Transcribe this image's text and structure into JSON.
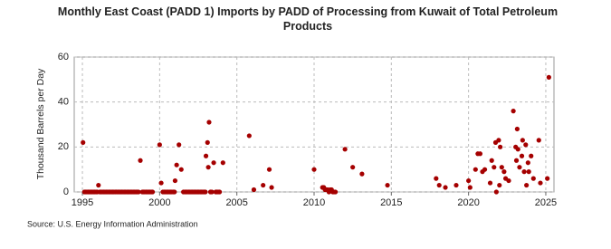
{
  "chart_data": {
    "type": "scatter",
    "title": "Monthly East Coast (PADD 1) Imports by PADD of Processing from Kuwait of Total Petroleum Products",
    "y_label": "Thousand Barrels per Day",
    "source": "Source: U.S. Energy Information Administration",
    "color": "#a50000",
    "grid": true,
    "xlim": [
      1994.47,
      2025.53
    ],
    "xticks": [
      1995,
      2000,
      2005,
      2010,
      2015,
      2020,
      2025
    ],
    "ylim": [
      0,
      60
    ],
    "yticks": [
      0,
      20,
      40,
      60
    ],
    "x": [
      1995.04,
      1995.13,
      1995.21,
      1995.29,
      1995.38,
      1995.46,
      1995.54,
      1995.63,
      1995.71,
      1995.79,
      1995.88,
      1995.96,
      1996.04,
      1996.13,
      1996.21,
      1996.29,
      1996.38,
      1996.46,
      1996.54,
      1996.63,
      1996.71,
      1996.79,
      1996.88,
      1996.96,
      1997.04,
      1997.13,
      1997.21,
      1997.29,
      1997.38,
      1997.46,
      1997.54,
      1997.63,
      1997.71,
      1997.79,
      1997.88,
      1997.96,
      1998.04,
      1998.13,
      1998.21,
      1998.29,
      1998.38,
      1998.46,
      1998.54,
      1998.63,
      1998.75,
      1998.88,
      1998.96,
      1999.04,
      1999.13,
      1999.21,
      1999.29,
      1999.38,
      1999.46,
      1999.54,
      2000.0,
      2000.1,
      2000.21,
      2000.29,
      2000.38,
      2000.46,
      2000.54,
      2000.63,
      2000.71,
      2000.79,
      2000.88,
      2000.96,
      2001.0,
      2001.1,
      2001.25,
      2001.4,
      2001.54,
      2001.63,
      2001.71,
      2001.79,
      2001.88,
      2001.96,
      2002.04,
      2002.13,
      2002.21,
      2002.29,
      2002.38,
      2002.46,
      2002.54,
      2002.63,
      2002.71,
      2002.79,
      2002.88,
      2002.96,
      2003.0,
      2003.1,
      2003.15,
      2003.2,
      2003.29,
      2003.38,
      2003.5,
      2003.63,
      2003.71,
      2003.79,
      2003.88,
      2004.1,
      2005.8,
      2006.1,
      2006.7,
      2007.1,
      2007.25,
      2010.0,
      2010.54,
      2010.63,
      2010.71,
      2010.79,
      2010.88,
      2010.96,
      2011.04,
      2011.13,
      2011.21,
      2011.29,
      2011.38,
      2012.0,
      2012.5,
      2013.1,
      2014.75,
      2017.9,
      2018.1,
      2018.5,
      2019.2,
      2020.0,
      2020.1,
      2020.45,
      2020.6,
      2020.75,
      2020.9,
      2021.05,
      2021.4,
      2021.5,
      2021.65,
      2021.75,
      2021.8,
      2021.95,
      2022.0,
      2022.05,
      2022.15,
      2022.3,
      2022.4,
      2022.6,
      2022.9,
      2023.05,
      2023.1,
      2023.15,
      2023.2,
      2023.3,
      2023.45,
      2023.5,
      2023.6,
      2023.7,
      2023.75,
      2023.85,
      2023.9,
      2024.05,
      2024.2,
      2024.55,
      2024.65,
      2025.1,
      2025.2
    ],
    "values": [
      22,
      0,
      0,
      0,
      0,
      0,
      0,
      0,
      0,
      0,
      0,
      0,
      3,
      0,
      0,
      0,
      0,
      0,
      0,
      0,
      0,
      0,
      0,
      0,
      0,
      0,
      0,
      0,
      0,
      0,
      0,
      0,
      0,
      0,
      0,
      0,
      0,
      0,
      0,
      0,
      0,
      0,
      0,
      0,
      14,
      0,
      0,
      0,
      0,
      0,
      0,
      0,
      0,
      0,
      21,
      4,
      0,
      0,
      0,
      0,
      0,
      0,
      0,
      0,
      0,
      0,
      5,
      12,
      21,
      10,
      0,
      0,
      0,
      0,
      0,
      0,
      0,
      0,
      0,
      0,
      0,
      0,
      0,
      0,
      0,
      0,
      0,
      0,
      16,
      22,
      11,
      31,
      0,
      0,
      13,
      0,
      0,
      0,
      0,
      13,
      25,
      1,
      3,
      10,
      2,
      10,
      2,
      2,
      1,
      1,
      1,
      0,
      1,
      1,
      0,
      0,
      0,
      19,
      11,
      8,
      3,
      6,
      3,
      2,
      3,
      5,
      2,
      10,
      17,
      17,
      9,
      10,
      4,
      14,
      11,
      22,
      0,
      23,
      3,
      20,
      11,
      9,
      6,
      5,
      36,
      20,
      14,
      28,
      19,
      11,
      16,
      23,
      9,
      21,
      3,
      13,
      9,
      16,
      6,
      23,
      4,
      6,
      51
    ]
  }
}
